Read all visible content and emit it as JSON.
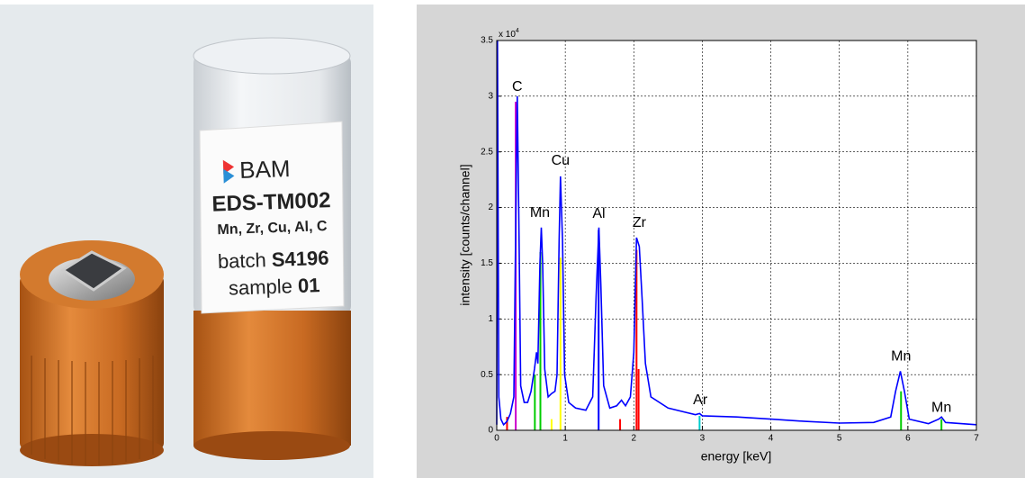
{
  "photo": {
    "brand": "BAM",
    "product": "EDS-TM002",
    "elements": "Mn, Zr, Cu, Al, C",
    "batch_prefix": "batch",
    "batch": "S4196",
    "sample_prefix": "sample",
    "sample": "01"
  },
  "chart_data": {
    "type": "line",
    "xlabel": "energy [keV]",
    "ylabel": "intensity [counts/channel]",
    "y_scale_label": "x 10",
    "y_scale_exponent": "4",
    "xlim": [
      0,
      7
    ],
    "xticks": [
      0,
      1,
      2,
      3,
      4,
      5,
      6,
      7
    ],
    "ylim": [
      0,
      3.5
    ],
    "yticks": [
      0,
      0.5,
      1,
      1.5,
      2,
      2.5,
      3,
      3.5
    ],
    "grid": true,
    "series": [
      {
        "color": "#0000ff",
        "x": [
          0,
          0.01,
          0.03,
          0.06,
          0.1,
          0.15,
          0.2,
          0.25,
          0.28,
          0.3,
          0.32,
          0.35,
          0.4,
          0.45,
          0.5,
          0.55,
          0.58,
          0.6,
          0.63,
          0.65,
          0.67,
          0.7,
          0.75,
          0.8,
          0.85,
          0.88,
          0.91,
          0.93,
          0.96,
          0.99,
          1.05,
          1.15,
          1.3,
          1.4,
          1.45,
          1.49,
          1.52,
          1.56,
          1.65,
          1.75,
          1.82,
          1.88,
          1.95,
          2.0,
          2.04,
          2.08,
          2.12,
          2.17,
          2.25,
          2.5,
          2.9,
          2.96,
          3.0,
          3.5,
          4,
          4.5,
          5,
          5.5,
          5.75,
          5.82,
          5.89,
          5.95,
          6.02,
          6.3,
          6.45,
          6.49,
          6.55,
          7
        ],
        "values": [
          0.05,
          3.5,
          0.3,
          0.1,
          0.05,
          0.08,
          0.15,
          0.3,
          2.0,
          3.0,
          2.0,
          0.4,
          0.25,
          0.25,
          0.35,
          0.55,
          0.7,
          0.6,
          1.5,
          1.82,
          1.5,
          0.55,
          0.3,
          0.33,
          0.35,
          0.5,
          1.7,
          2.28,
          1.7,
          0.5,
          0.25,
          0.2,
          0.18,
          0.3,
          1.2,
          1.82,
          1.3,
          0.4,
          0.2,
          0.22,
          0.27,
          0.22,
          0.3,
          0.7,
          1.73,
          1.65,
          1.2,
          0.6,
          0.3,
          0.2,
          0.14,
          0.15,
          0.13,
          0.12,
          0.1,
          0.08,
          0.065,
          0.07,
          0.12,
          0.35,
          0.53,
          0.35,
          0.1,
          0.06,
          0.1,
          0.12,
          0.07,
          0.05
        ]
      }
    ],
    "sticks": {
      "x": [
        0.15,
        0.277,
        0.556,
        0.637,
        0.8,
        0.93,
        1.487,
        1.8,
        2.04,
        2.07,
        2.96,
        5.9,
        6.49
      ],
      "values": [
        0.12,
        2.95,
        0.5,
        1.6,
        0.1,
        1.55,
        1.8,
        0.1,
        1.62,
        0.55,
        0.13,
        0.35,
        0.1
      ],
      "colors": [
        "#ff0000",
        "#cc00cc",
        "#00cc00",
        "#00cc00",
        "#ffff00",
        "#ffff00",
        "#0000ff",
        "#ff0000",
        "#ff0000",
        "#ff0000",
        "#00cccc",
        "#00cc00",
        "#00cc00"
      ]
    },
    "annotations": [
      {
        "text": "C",
        "x": 0.3,
        "y": 3.08
      },
      {
        "text": "Mn",
        "x": 0.63,
        "y": 1.95
      },
      {
        "text": "Cu",
        "x": 0.93,
        "y": 2.42
      },
      {
        "text": "Al",
        "x": 1.49,
        "y": 1.94
      },
      {
        "text": "Zr",
        "x": 2.08,
        "y": 1.86
      },
      {
        "text": "Ar",
        "x": 2.97,
        "y": 0.27
      },
      {
        "text": "Mn",
        "x": 5.9,
        "y": 0.66
      },
      {
        "text": "Mn",
        "x": 6.49,
        "y": 0.2
      }
    ]
  }
}
